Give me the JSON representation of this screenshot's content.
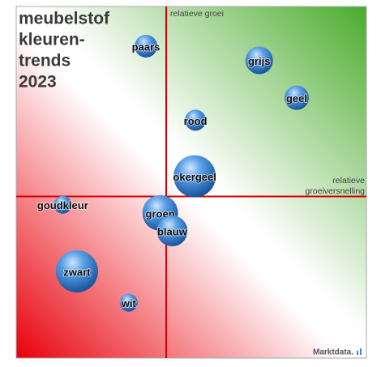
{
  "chart_data": {
    "type": "bubble",
    "title": [
      "meubelstof",
      "kleuren-",
      "trends",
      "2023"
    ],
    "ylabel": "relatieve groei",
    "xlabel": [
      "relatieve",
      "groeiversnelling"
    ],
    "source": "Marktdata.",
    "xlim": [
      -100,
      133.5
    ],
    "ylim": [
      -108,
      127
    ],
    "color": "#3f86d0",
    "points": [
      {
        "label": "paars",
        "x": -13.5,
        "y": 100.5,
        "size": 14
      },
      {
        "label": "grijs",
        "x": 62,
        "y": 91,
        "size": 17
      },
      {
        "label": "geel",
        "x": 87,
        "y": 66,
        "size": 15
      },
      {
        "label": "rood",
        "x": 19.5,
        "y": 51,
        "size": 13
      },
      {
        "label": "okergeel",
        "x": 19,
        "y": 13.5,
        "size": 26
      },
      {
        "label": "goudkleur",
        "x": -69,
        "y": -5.5,
        "size": 11
      },
      {
        "label": "groen",
        "x": -4,
        "y": -11,
        "size": 22
      },
      {
        "label": "blauw",
        "x": 4,
        "y": -23,
        "size": 19
      },
      {
        "label": "zwart",
        "x": -59.5,
        "y": -50,
        "size": 26
      },
      {
        "label": "wit",
        "x": -25,
        "y": -71,
        "size": 11
      }
    ]
  }
}
